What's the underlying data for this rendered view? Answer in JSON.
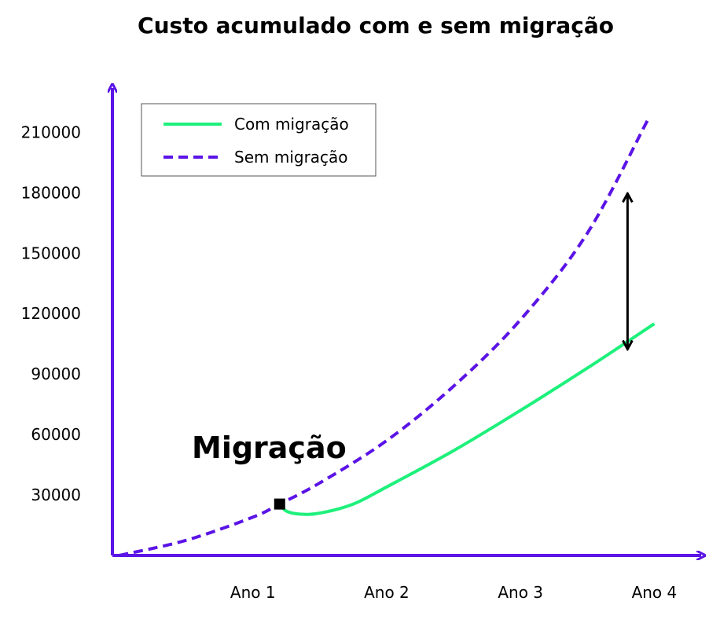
{
  "chart_data": {
    "type": "line",
    "title": "Custo acumulado com e sem migração",
    "xlabel": "",
    "ylabel": "",
    "x_ticks": [
      {
        "label": "Ano 1",
        "value": 1
      },
      {
        "label": "Ano 2",
        "value": 2
      },
      {
        "label": "Ano 3",
        "value": 3
      },
      {
        "label": "Ano 4",
        "value": 4
      }
    ],
    "y_ticks": [
      30000,
      60000,
      90000,
      120000,
      150000,
      180000,
      210000
    ],
    "xlim": [
      -0.05,
      4.35
    ],
    "ylim": [
      0,
      232000
    ],
    "grid": false,
    "legend": {
      "position": "top-left"
    },
    "series": [
      {
        "name": "Com migração",
        "style": "solid",
        "color": "#1ef07c",
        "points": [
          [
            1.2,
            25500
          ],
          [
            1.25,
            22000
          ],
          [
            1.35,
            20500
          ],
          [
            1.5,
            21000
          ],
          [
            1.75,
            25500
          ],
          [
            2.0,
            34000
          ],
          [
            2.5,
            52000
          ],
          [
            3.0,
            72000
          ],
          [
            3.5,
            93000
          ],
          [
            4.0,
            115000
          ]
        ]
      },
      {
        "name": "Sem migração",
        "style": "dashed",
        "color": "#5b14e6",
        "points": [
          [
            0.0,
            0
          ],
          [
            0.5,
            7500
          ],
          [
            1.0,
            19000
          ],
          [
            1.2,
            25500
          ],
          [
            1.5,
            36000
          ],
          [
            2.0,
            57000
          ],
          [
            2.5,
            84000
          ],
          [
            3.0,
            117000
          ],
          [
            3.5,
            160000
          ],
          [
            3.95,
            216000
          ]
        ]
      }
    ],
    "annotations": [
      {
        "type": "text",
        "text": "Migração"
      },
      {
        "type": "marker",
        "shape": "square",
        "x": 1.2,
        "y": 25500
      },
      {
        "type": "double-arrow",
        "x": 3.8,
        "y_from": 102000,
        "y_to": 180000
      }
    ],
    "colors": {
      "axis": "#5b14e6",
      "com": "#1ef07c",
      "sem": "#5b14e6",
      "arrow": "#000000"
    }
  }
}
